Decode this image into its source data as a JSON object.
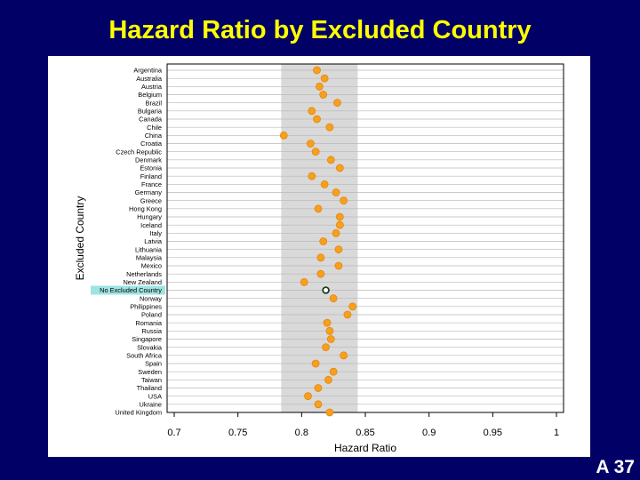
{
  "slide": {
    "title": "Hazard Ratio by Excluded Country",
    "number": "A 37"
  },
  "colors": {
    "background": "#000066",
    "title": "#ffff00",
    "point": "#f5a01e",
    "point_border": "#e8860a",
    "reference_band": "#d9d9d9",
    "highlight_label_bg": "#9fe3e3"
  },
  "chart_data": {
    "type": "scatter",
    "title": "",
    "xlabel": "Hazard Ratio",
    "ylabel": "Excluded Country",
    "xlim": [
      0.7,
      1.0
    ],
    "xticks": [
      "0.7",
      "0.75",
      "0.8",
      "0.85",
      "0.9",
      "0.95",
      "1"
    ],
    "reference_band": [
      0.784,
      0.844
    ],
    "reference_row": "No Excluded Country",
    "grid": "horizontal",
    "points": [
      {
        "country": "Argentina",
        "hr": 0.812
      },
      {
        "country": "Australia",
        "hr": 0.818
      },
      {
        "country": "Austria",
        "hr": 0.814
      },
      {
        "country": "Belgium",
        "hr": 0.817
      },
      {
        "country": "Brazil",
        "hr": 0.828
      },
      {
        "country": "Bulgaria",
        "hr": 0.808
      },
      {
        "country": "Canada",
        "hr": 0.812
      },
      {
        "country": "Chile",
        "hr": 0.822
      },
      {
        "country": "China",
        "hr": 0.786
      },
      {
        "country": "Croatia",
        "hr": 0.807
      },
      {
        "country": "Czech Republic",
        "hr": 0.811
      },
      {
        "country": "Denmark",
        "hr": 0.823
      },
      {
        "country": "Estonia",
        "hr": 0.83
      },
      {
        "country": "Finland",
        "hr": 0.808
      },
      {
        "country": "France",
        "hr": 0.818
      },
      {
        "country": "Germany",
        "hr": 0.827
      },
      {
        "country": "Greece",
        "hr": 0.833
      },
      {
        "country": "Hong Kong",
        "hr": 0.813
      },
      {
        "country": "Hungary",
        "hr": 0.83
      },
      {
        "country": "Iceland",
        "hr": 0.83
      },
      {
        "country": "Italy",
        "hr": 0.827
      },
      {
        "country": "Latvia",
        "hr": 0.817
      },
      {
        "country": "Lithuania",
        "hr": 0.829
      },
      {
        "country": "Malaysia",
        "hr": 0.815
      },
      {
        "country": "Mexico",
        "hr": 0.829
      },
      {
        "country": "Netherlands",
        "hr": 0.815
      },
      {
        "country": "New Zealand",
        "hr": 0.802
      },
      {
        "country": "No Excluded Country",
        "hr": 0.819,
        "reference": true
      },
      {
        "country": "Norway",
        "hr": 0.825
      },
      {
        "country": "Philippines",
        "hr": 0.84
      },
      {
        "country": "Poland",
        "hr": 0.836
      },
      {
        "country": "Romania",
        "hr": 0.82
      },
      {
        "country": "Russia",
        "hr": 0.822
      },
      {
        "country": "Singapore",
        "hr": 0.823
      },
      {
        "country": "Slovakia",
        "hr": 0.819
      },
      {
        "country": "South Africa",
        "hr": 0.833
      },
      {
        "country": "Spain",
        "hr": 0.811
      },
      {
        "country": "Sweden",
        "hr": 0.825
      },
      {
        "country": "Taiwan",
        "hr": 0.821
      },
      {
        "country": "Thailand",
        "hr": 0.813
      },
      {
        "country": "USA",
        "hr": 0.805
      },
      {
        "country": "Ukraine",
        "hr": 0.813
      },
      {
        "country": "United Kingdom",
        "hr": 0.822
      }
    ]
  }
}
